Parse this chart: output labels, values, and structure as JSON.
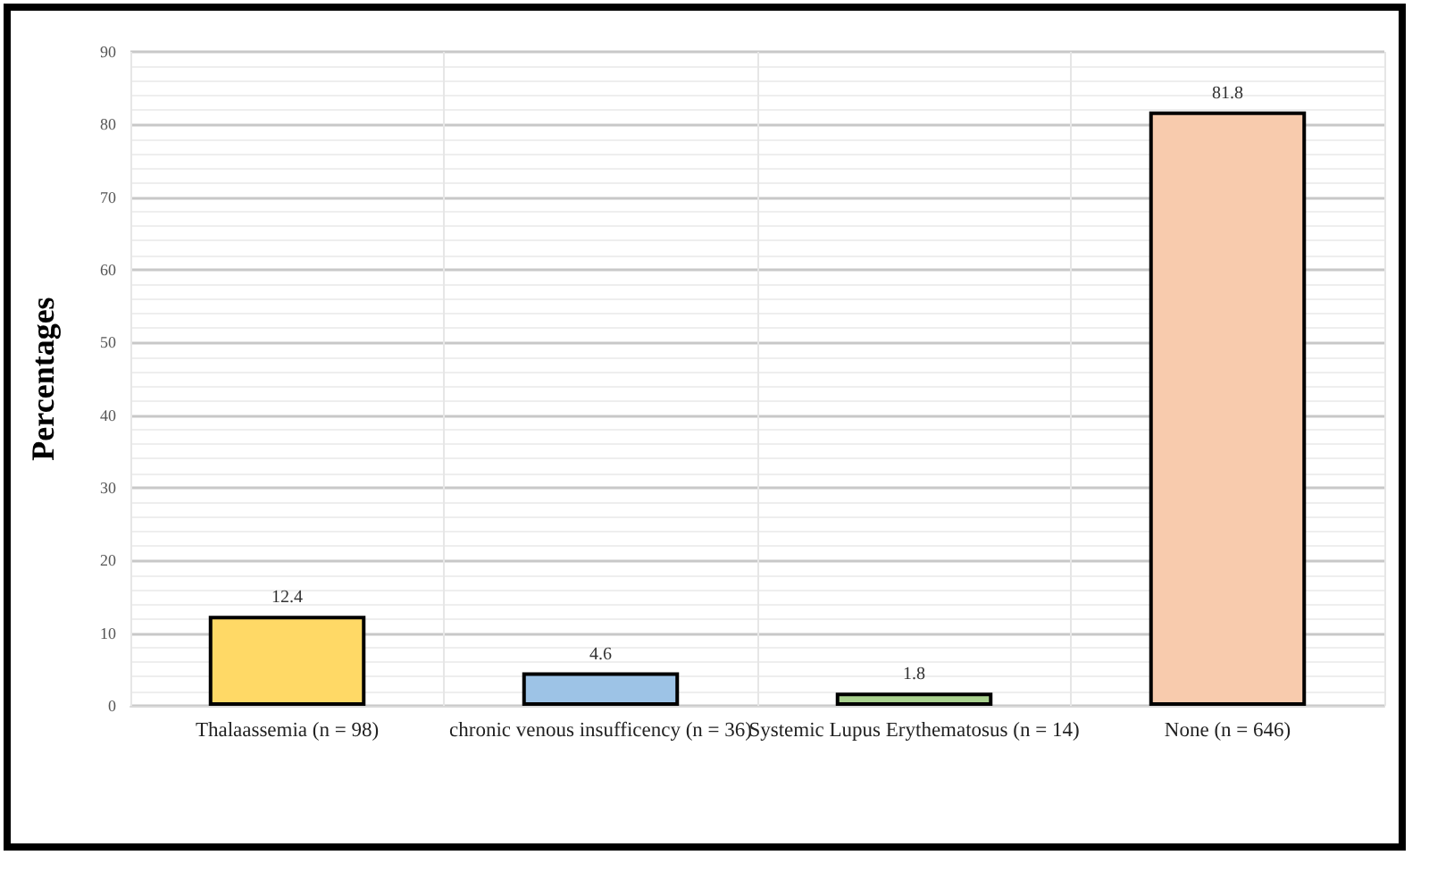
{
  "chart_data": {
    "type": "bar",
    "ylabel": "Percentages",
    "categories": [
      "Thalaassemia (n = 98)",
      "chronic venous insufficency (n = 36)",
      "Systemic Lupus Erythematosus (n = 14)",
      "None (n = 646)"
    ],
    "values": [
      12.4,
      4.6,
      1.8,
      81.8
    ],
    "colors": [
      "#ffd966",
      "#9dc3e6",
      "#a9d18e",
      "#f8cbad"
    ],
    "ylim": [
      0,
      90
    ],
    "yticks": [
      0,
      10,
      20,
      30,
      40,
      50,
      60,
      70,
      80,
      90
    ],
    "grid": true,
    "data_labels": true
  }
}
